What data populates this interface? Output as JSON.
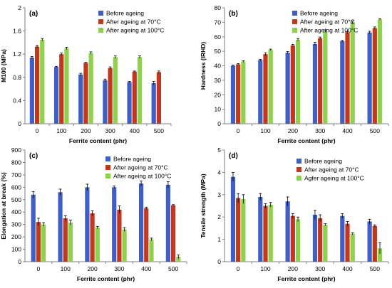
{
  "colors": {
    "before": "#3f5fc4",
    "after70": "#c2381e",
    "after100": "#8fd14e",
    "axis": "#7f7f7f",
    "text": "#000000"
  },
  "chart_data": [
    {
      "type": "bar",
      "panel_label": "(a)",
      "xlabel": "Ferrite content (phr)",
      "ylabel": "M100 (MPa)",
      "ylim": [
        0,
        2
      ],
      "yticks": [
        "0",
        "0.4",
        "0.8",
        "1.2",
        "1.6",
        "2"
      ],
      "yticks_values": [
        0,
        0.4,
        0.8,
        1.2,
        1.6,
        2
      ],
      "categories": [
        "0",
        "100",
        "200",
        "300",
        "400",
        "500"
      ],
      "legend_position": "top-right",
      "series": [
        {
          "name": "Before ageing",
          "values": [
            1.14,
            0.98,
            0.85,
            0.75,
            0.72,
            0.7
          ],
          "errors": [
            0.02,
            0.01,
            0.02,
            0.02,
            0.01,
            0.03
          ]
        },
        {
          "name": "After ageing at 70°C",
          "values": [
            1.33,
            1.2,
            1.05,
            0.96,
            0.9,
            0.89
          ],
          "errors": [
            0.02,
            0.02,
            0.01,
            0.02,
            0.01,
            0.02
          ]
        },
        {
          "name": "After ageing at 100°C",
          "values": [
            1.45,
            1.3,
            1.22,
            1.15,
            1.15,
            null
          ],
          "errors": [
            0.02,
            0.02,
            0.02,
            0.02,
            0.02,
            null
          ]
        }
      ]
    },
    {
      "type": "bar",
      "panel_label": "(b)",
      "xlabel": "Ferrite content (phr)",
      "ylabel": "Hardness (IRHD)",
      "ylim": [
        0,
        80
      ],
      "yticks": [
        "0",
        "10",
        "20",
        "30",
        "40",
        "50",
        "60",
        "70",
        "80"
      ],
      "yticks_values": [
        0,
        10,
        20,
        30,
        40,
        50,
        60,
        70,
        80
      ],
      "categories": [
        "0",
        "100",
        "200",
        "300",
        "400",
        "500"
      ],
      "legend_position": "top-left",
      "series": [
        {
          "name": "Before ageing",
          "values": [
            40,
            44,
            49,
            55,
            57,
            63
          ],
          "errors": [
            0.5,
            0.5,
            0.8,
            1.2,
            0.5,
            0.8
          ]
        },
        {
          "name": "After ageing at 70°C",
          "values": [
            41,
            48,
            54,
            59,
            63,
            66
          ],
          "errors": [
            0.5,
            1.0,
            0.8,
            0.8,
            0.8,
            0.8
          ]
        },
        {
          "name": "After ageing at 100°C",
          "values": [
            43,
            51,
            58,
            64,
            70,
            72
          ],
          "errors": [
            0.5,
            0.5,
            0.8,
            0.8,
            0.8,
            0.5
          ]
        }
      ]
    },
    {
      "type": "bar",
      "panel_label": "(c)",
      "xlabel": "Ferrite content (phr)",
      "ylabel": "Elongation at break (%)",
      "ylim": [
        0,
        900
      ],
      "yticks": [
        "0",
        "100",
        "200",
        "300",
        "400",
        "500",
        "600",
        "700",
        "800",
        "900"
      ],
      "yticks_values": [
        0,
        100,
        200,
        300,
        400,
        500,
        600,
        700,
        800,
        900
      ],
      "categories": [
        "0",
        "100",
        "200",
        "300",
        "400",
        "500"
      ],
      "legend_position": "top-right",
      "series": [
        {
          "name": "Before ageing",
          "values": [
            540,
            560,
            600,
            600,
            630,
            620
          ],
          "errors": [
            25,
            25,
            25,
            10,
            20,
            25
          ]
        },
        {
          "name": "After ageing at 70°C",
          "values": [
            320,
            350,
            390,
            420,
            430,
            455
          ],
          "errors": [
            30,
            20,
            20,
            30,
            10,
            5
          ]
        },
        {
          "name": "After ageing at 100°C",
          "values": [
            300,
            315,
            275,
            260,
            180,
            40
          ],
          "errors": [
            15,
            20,
            10,
            15,
            10,
            15
          ]
        }
      ]
    },
    {
      "type": "bar",
      "panel_label": "(d)",
      "xlabel": "Ferrite content (phr)",
      "ylabel": "Tensile strength (MPa)",
      "ylim": [
        0,
        5
      ],
      "yticks": [
        "0",
        "1",
        "2",
        "3",
        "4",
        "5"
      ],
      "yticks_values": [
        0,
        1,
        2,
        3,
        4,
        5
      ],
      "categories": [
        "0",
        "100",
        "200",
        "300",
        "400",
        "500"
      ],
      "legend_position": "top-right",
      "series": [
        {
          "name": "Before ageing",
          "values": [
            3.8,
            2.9,
            2.7,
            2.1,
            2.05,
            1.8
          ],
          "errors": [
            0.2,
            0.15,
            0.2,
            0.2,
            0.1,
            0.1
          ]
        },
        {
          "name": "After ageing at 70°C",
          "values": [
            2.85,
            2.5,
            2.05,
            1.95,
            1.7,
            1.6
          ],
          "errors": [
            0.2,
            0.1,
            0.1,
            0.15,
            0.1,
            0.05
          ]
        },
        {
          "name": "Agfer ageing at 100°C",
          "values": [
            2.8,
            2.55,
            1.9,
            1.65,
            1.25,
            0.6
          ],
          "errors": [
            0.2,
            0.1,
            0.1,
            0.05,
            0.05,
            0.25
          ]
        }
      ]
    }
  ]
}
